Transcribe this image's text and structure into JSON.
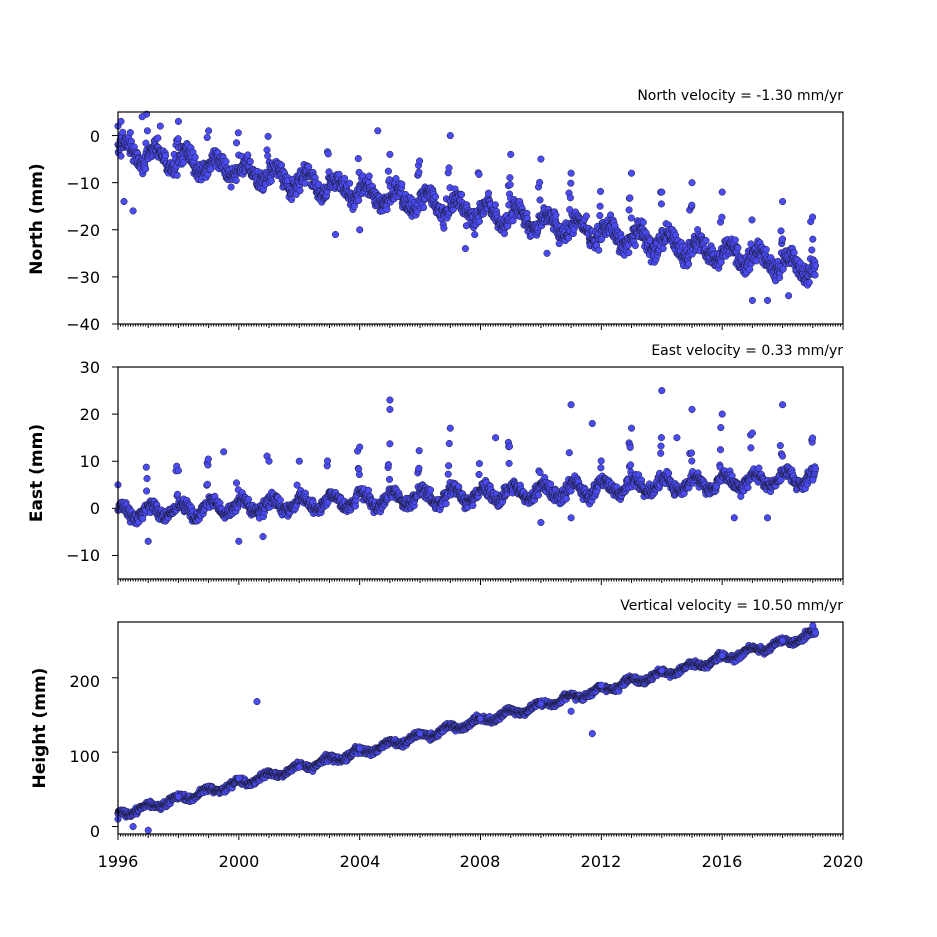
{
  "colors": {
    "marker": "#4b4bf5",
    "edge": "#1a1a2e",
    "axes": "#000000",
    "background": "#ffffff"
  },
  "chart_data": [
    {
      "type": "scatter",
      "title": "North velocity = -1.30 mm/yr",
      "xlabel": "",
      "ylabel": "North (mm)",
      "xlim": [
        1996,
        2020
      ],
      "ylim": [
        -40,
        5
      ],
      "yticks": [
        "0",
        "−10",
        "−20",
        "−30",
        "−40"
      ],
      "series": [
        {
          "values": [
            {
              "x": 1996.0,
              "y": 2
            },
            {
              "x": 1996.1,
              "y": 3
            },
            {
              "x": 1996.2,
              "y": -14
            },
            {
              "x": 1996.5,
              "y": -16
            },
            {
              "x": 1996.8,
              "y": 4
            },
            {
              "x": 1997.4,
              "y": 2
            },
            {
              "x": 1998.0,
              "y": 3
            },
            {
              "x": 1999.0,
              "y": 1
            },
            {
              "x": 2003.2,
              "y": -21
            },
            {
              "x": 2004.0,
              "y": -20
            },
            {
              "x": 2004.6,
              "y": 1
            },
            {
              "x": 2005.0,
              "y": -4
            },
            {
              "x": 2007.0,
              "y": 0
            },
            {
              "x": 2007.5,
              "y": -24
            },
            {
              "x": 2009.0,
              "y": -4
            },
            {
              "x": 2010.0,
              "y": -5
            },
            {
              "x": 2010.2,
              "y": -25
            },
            {
              "x": 2011.0,
              "y": -8
            },
            {
              "x": 2013.0,
              "y": -8
            },
            {
              "x": 2014.0,
              "y": -12
            },
            {
              "x": 2015.0,
              "y": -10
            },
            {
              "x": 2016.0,
              "y": -12
            },
            {
              "x": 2017.0,
              "y": -35
            },
            {
              "x": 2017.5,
              "y": -35
            },
            {
              "x": 2018.0,
              "y": -14
            },
            {
              "x": 2018.2,
              "y": -34
            },
            {
              "x": 2019.0,
              "y": -22
            }
          ]
        }
      ]
    },
    {
      "type": "scatter",
      "title": "East velocity = 0.33 mm/yr",
      "xlabel": "",
      "ylabel": "East (mm)",
      "xlim": [
        1996,
        2020
      ],
      "ylim": [
        -15,
        30
      ],
      "yticks": [
        "30",
        "20",
        "10",
        "0",
        "−10"
      ],
      "series": [
        {
          "values": [
            {
              "x": 1996.0,
              "y": 5
            },
            {
              "x": 1997.0,
              "y": -7
            },
            {
              "x": 1998.0,
              "y": 8
            },
            {
              "x": 1999.5,
              "y": 12
            },
            {
              "x": 2000.0,
              "y": -7
            },
            {
              "x": 2000.8,
              "y": -6
            },
            {
              "x": 2001.0,
              "y": 10
            },
            {
              "x": 2002.0,
              "y": 10
            },
            {
              "x": 2004.0,
              "y": 13
            },
            {
              "x": 2005.0,
              "y": 23
            },
            {
              "x": 2005.0,
              "y": 21
            },
            {
              "x": 2007.0,
              "y": 17
            },
            {
              "x": 2008.5,
              "y": 15
            },
            {
              "x": 2010.0,
              "y": -3
            },
            {
              "x": 2011.0,
              "y": 22
            },
            {
              "x": 2011.0,
              "y": -2
            },
            {
              "x": 2011.7,
              "y": 18
            },
            {
              "x": 2013.0,
              "y": 17
            },
            {
              "x": 2014.0,
              "y": 25
            },
            {
              "x": 2014.5,
              "y": 15
            },
            {
              "x": 2015.0,
              "y": 21
            },
            {
              "x": 2016.0,
              "y": 20
            },
            {
              "x": 2016.4,
              "y": -2
            },
            {
              "x": 2017.0,
              "y": 16
            },
            {
              "x": 2017.5,
              "y": -2
            },
            {
              "x": 2018.0,
              "y": 22
            },
            {
              "x": 2019.0,
              "y": 6
            }
          ]
        }
      ]
    },
    {
      "type": "scatter",
      "title": "Vertical velocity = 10.50 mm/yr",
      "xlabel": "",
      "ylabel": "Height (mm)",
      "xlim": [
        1996,
        2020
      ],
      "ylim": [
        -10,
        275
      ],
      "yticks": [
        "200",
        "100",
        "0"
      ],
      "xticks": [
        "1996",
        "2000",
        "2004",
        "2008",
        "2012",
        "2016",
        "2020"
      ],
      "series": [
        {
          "values": [
            {
              "x": 1996.0,
              "y": 10
            },
            {
              "x": 1996.5,
              "y": 0
            },
            {
              "x": 1997.0,
              "y": -5
            },
            {
              "x": 1998.0,
              "y": 40
            },
            {
              "x": 2000.0,
              "y": 65
            },
            {
              "x": 2000.6,
              "y": 168
            },
            {
              "x": 2002.0,
              "y": 80
            },
            {
              "x": 2004.0,
              "y": 105
            },
            {
              "x": 2006.0,
              "y": 125
            },
            {
              "x": 2008.0,
              "y": 145
            },
            {
              "x": 2010.0,
              "y": 165
            },
            {
              "x": 2011.0,
              "y": 155
            },
            {
              "x": 2011.7,
              "y": 125
            },
            {
              "x": 2012.0,
              "y": 190
            },
            {
              "x": 2014.0,
              "y": 210
            },
            {
              "x": 2016.0,
              "y": 230
            },
            {
              "x": 2018.0,
              "y": 250
            },
            {
              "x": 2019.0,
              "y": 270
            }
          ]
        }
      ]
    }
  ]
}
